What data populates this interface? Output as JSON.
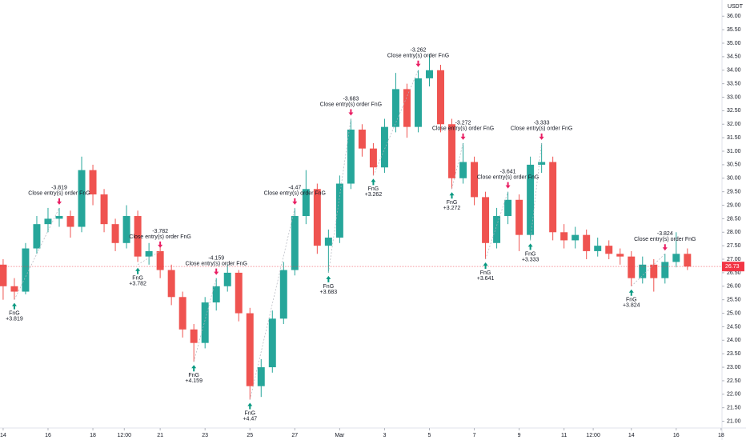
{
  "chart_data": {
    "type": "candlestick",
    "currency": "USDT",
    "up_color": "#26a69a",
    "down_color": "#ef5350",
    "x": [
      0,
      0.5,
      1,
      1.5,
      2,
      2.5,
      3,
      3.5,
      4,
      4.5,
      5,
      5.5,
      6,
      6.5,
      7,
      7.5,
      8,
      8.5,
      9,
      9.5,
      10,
      10.5,
      11,
      11.5,
      12,
      12.5,
      13,
      13.5,
      14,
      14.5,
      15,
      15.5,
      16,
      16.5,
      17,
      17.5,
      18,
      18.5,
      19,
      19.5,
      20,
      20.5,
      21,
      21.5,
      22,
      22.5,
      23,
      23.5,
      24,
      24.5,
      25,
      25.5,
      26,
      26.5,
      27,
      27.5,
      28,
      28.5,
      29,
      29.5,
      30,
      30.5
    ],
    "open": [
      26.8,
      26.0,
      25.8,
      27.4,
      28.3,
      28.5,
      28.6,
      28.2,
      30.3,
      29.4,
      28.3,
      27.6,
      28.6,
      27.1,
      27.3,
      26.6,
      25.6,
      24.4,
      23.9,
      25.4,
      26.0,
      26.5,
      25.0,
      22.3,
      23.0,
      24.8,
      26.6,
      28.6,
      29.6,
      27.5,
      27.8,
      29.8,
      31.8,
      31.1,
      30.4,
      31.9,
      33.3,
      31.9,
      33.7,
      34.0,
      32.0,
      30.0,
      30.6,
      29.3,
      27.6,
      28.6,
      29.2,
      27.9,
      30.5,
      30.6,
      28.0,
      27.7,
      27.9,
      27.3,
      27.5,
      27.2,
      27.1,
      26.3,
      26.8,
      26.3,
      26.9,
      27.2
    ],
    "high": [
      27.0,
      26.3,
      27.6,
      28.6,
      28.9,
      28.9,
      28.8,
      30.8,
      30.5,
      29.6,
      28.5,
      29.0,
      28.8,
      27.6,
      27.5,
      26.8,
      25.8,
      24.6,
      25.6,
      26.3,
      26.8,
      26.6,
      25.2,
      23.3,
      25.1,
      26.9,
      28.9,
      30.3,
      29.8,
      28.1,
      30.1,
      32.2,
      32.0,
      31.3,
      32.2,
      33.9,
      33.5,
      34.0,
      34.6,
      34.2,
      32.2,
      31.3,
      30.8,
      29.5,
      28.9,
      29.5,
      29.4,
      30.8,
      31.3,
      30.8,
      28.3,
      28.2,
      28.1,
      27.8,
      27.7,
      27.4,
      27.3,
      27.1,
      27.0,
      27.2,
      28.0,
      27.4
    ],
    "low": [
      25.5,
      25.5,
      25.7,
      27.2,
      28.0,
      28.2,
      27.8,
      28.0,
      29.0,
      28.0,
      27.3,
      27.4,
      26.9,
      26.8,
      26.3,
      25.3,
      24.1,
      23.2,
      23.7,
      25.1,
      25.8,
      24.7,
      21.8,
      21.9,
      22.8,
      24.6,
      26.4,
      28.3,
      27.2,
      26.5,
      27.6,
      29.6,
      30.8,
      30.1,
      30.2,
      31.7,
      31.5,
      31.7,
      33.4,
      31.7,
      29.6,
      29.8,
      29.0,
      27.0,
      27.4,
      28.3,
      27.3,
      27.7,
      30.2,
      27.7,
      27.4,
      27.4,
      27.0,
      27.1,
      27.0,
      26.8,
      26.0,
      26.1,
      25.8,
      26.1,
      26.7,
      26.6
    ],
    "close": [
      26.0,
      25.8,
      27.4,
      28.3,
      28.5,
      28.6,
      28.2,
      30.3,
      29.4,
      28.3,
      27.6,
      28.6,
      27.1,
      27.3,
      26.6,
      25.6,
      24.4,
      23.9,
      25.4,
      26.0,
      26.5,
      25.0,
      22.3,
      23.0,
      24.8,
      26.6,
      28.6,
      29.6,
      27.5,
      27.8,
      29.8,
      31.8,
      31.1,
      30.4,
      31.9,
      33.3,
      31.9,
      33.7,
      34.0,
      32.0,
      30.0,
      30.6,
      29.3,
      27.6,
      28.6,
      29.2,
      27.9,
      30.5,
      30.6,
      28.0,
      27.7,
      27.9,
      27.3,
      27.5,
      27.2,
      27.1,
      26.3,
      26.8,
      26.3,
      26.9,
      27.2,
      26.73
    ],
    "last_price": 26.73,
    "last_price_color": "#f23645",
    "xlim": [
      -0.14,
      32.04
    ],
    "xticks": [
      {
        "value": 0,
        "label": "14"
      },
      {
        "value": 2,
        "label": "16"
      },
      {
        "value": 4,
        "label": "18"
      },
      {
        "value": 5.4,
        "label": "12:00"
      },
      {
        "value": 7,
        "label": "21"
      },
      {
        "value": 9,
        "label": "23"
      },
      {
        "value": 11,
        "label": "25"
      },
      {
        "value": 13,
        "label": "27"
      },
      {
        "value": 15,
        "label": "Mar"
      },
      {
        "value": 17,
        "label": "3"
      },
      {
        "value": 19,
        "label": "5"
      },
      {
        "value": 21,
        "label": "7"
      },
      {
        "value": 23,
        "label": "9"
      },
      {
        "value": 25,
        "label": "11"
      },
      {
        "value": 26.3,
        "label": "12:00"
      },
      {
        "value": 28,
        "label": "14"
      },
      {
        "value": 30,
        "label": "16"
      },
      {
        "value": 32,
        "label": "18"
      }
    ],
    "ylim": [
      20.75,
      36.6
    ],
    "yticks": [
      {
        "value": 21,
        "label": "21.00"
      },
      {
        "value": 21.5,
        "label": "21.50"
      },
      {
        "value": 22,
        "label": "22.00"
      },
      {
        "value": 22.5,
        "label": "22.50"
      },
      {
        "value": 23,
        "label": "23.00"
      },
      {
        "value": 23.5,
        "label": "23.50"
      },
      {
        "value": 24,
        "label": "24.00"
      },
      {
        "value": 24.5,
        "label": "24.50"
      },
      {
        "value": 25,
        "label": "25.00"
      },
      {
        "value": 25.5,
        "label": "25.50"
      },
      {
        "value": 26,
        "label": "26.00"
      },
      {
        "value": 26.5,
        "label": "26.50"
      },
      {
        "value": 27,
        "label": "27.00"
      },
      {
        "value": 27.5,
        "label": "27.50"
      },
      {
        "value": 28,
        "label": "28.00"
      },
      {
        "value": 28.5,
        "label": "28.50"
      },
      {
        "value": 29,
        "label": "29.00"
      },
      {
        "value": 29.5,
        "label": "29.50"
      },
      {
        "value": 30,
        "label": "30.00"
      },
      {
        "value": 30.5,
        "label": "30.50"
      },
      {
        "value": 31,
        "label": "31.00"
      },
      {
        "value": 31.5,
        "label": "31.50"
      },
      {
        "value": 32,
        "label": "32.00"
      },
      {
        "value": 32.5,
        "label": "32.50"
      },
      {
        "value": 33,
        "label": "33.00"
      },
      {
        "value": 33.5,
        "label": "33.50"
      },
      {
        "value": 34,
        "label": "34.00"
      },
      {
        "value": 34.5,
        "label": "34.50"
      },
      {
        "value": 35,
        "label": "35.00"
      },
      {
        "value": 35.5,
        "label": "35.50"
      },
      {
        "value": 36,
        "label": "36.00"
      }
    ],
    "grid": false,
    "trades": [
      {
        "entry_x": 0.5,
        "entry_price": 25.5,
        "entry_label": "FnG",
        "entry_value_label": "+3.819",
        "exit_x": 2.5,
        "exit_price": 28.9,
        "exit_value_label": "-3.819",
        "exit_label": "Close entry(s) order FnG"
      },
      {
        "entry_x": 6,
        "entry_price": 26.8,
        "entry_label": "FnG",
        "entry_value_label": "+3.782",
        "exit_x": 7,
        "exit_price": 27.3,
        "exit_value_label": "-3.782",
        "exit_label": "Close entry(s) order FnG"
      },
      {
        "entry_x": 8.5,
        "entry_price": 23.2,
        "entry_label": "FnG",
        "entry_value_label": "+4.159",
        "exit_x": 9.5,
        "exit_price": 26.3,
        "exit_value_label": "-4.159",
        "exit_label": "Close entry(s) order FnG"
      },
      {
        "entry_x": 11,
        "entry_price": 21.8,
        "entry_label": "FnG",
        "entry_value_label": "+4.47",
        "exit_x": 13,
        "exit_price": 28.9,
        "exit_value_label": "-4.47",
        "exit_label": "Close entry(s) order FnG"
      },
      {
        "entry_x": 14.5,
        "entry_price": 26.5,
        "entry_label": "FnG",
        "entry_value_label": "+3.683",
        "exit_x": 15.5,
        "exit_price": 32.2,
        "exit_value_label": "-3.683",
        "exit_label": "Close entry(s) order FnG"
      },
      {
        "entry_x": 16.5,
        "entry_price": 30.1,
        "entry_label": "FnG",
        "entry_value_label": "+3.262",
        "exit_x": 18.5,
        "exit_price": 34.0,
        "exit_value_label": "-3.262",
        "exit_label": "Close entry(s) order FnG"
      },
      {
        "entry_x": 20,
        "entry_price": 29.6,
        "entry_label": "FnG",
        "entry_value_label": "+3.272",
        "exit_x": 20.5,
        "exit_price": 31.3,
        "exit_value_label": "-3.272",
        "exit_label": "Close entry(s) order FnG"
      },
      {
        "entry_x": 21.5,
        "entry_price": 27.0,
        "entry_label": "FnG",
        "entry_value_label": "+3.641",
        "exit_x": 22.5,
        "exit_price": 29.5,
        "exit_value_label": "-3.641",
        "exit_label": "Close entry(s) order FnG"
      },
      {
        "entry_x": 23.5,
        "entry_price": 27.7,
        "entry_label": "FnG",
        "entry_value_label": "+3.333",
        "exit_x": 24,
        "exit_price": 31.3,
        "exit_value_label": "-3.333",
        "exit_label": "Close entry(s) order FnG"
      },
      {
        "entry_x": 28,
        "entry_price": 26.0,
        "entry_label": "FnG",
        "entry_value_label": "+3.824",
        "exit_x": 29.5,
        "exit_price": 27.2,
        "exit_value_label": "-3.824",
        "exit_label": "Close entry(s) order FnG"
      }
    ]
  }
}
